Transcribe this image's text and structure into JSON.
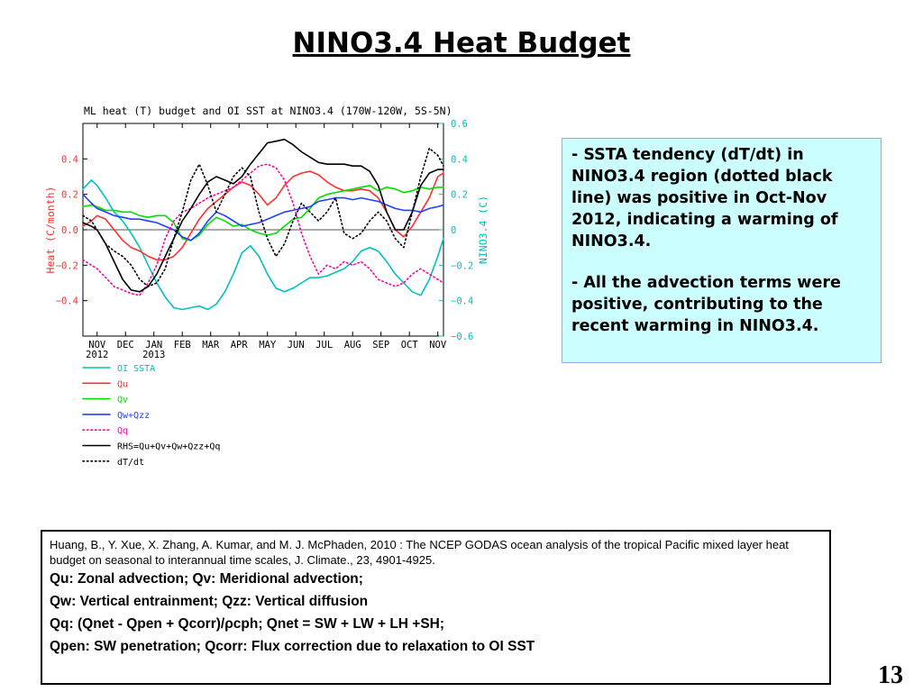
{
  "slide": {
    "title": "NINO3.4 Heat Budget",
    "page_number": "13"
  },
  "bullets": [
    {
      "dash": "- ",
      "text": "SSTA tendency (dT/dt) in NINO3.4 region (dotted black line) was positive in Oct-Nov 2012, indicating a warming of NINO3.4."
    },
    {
      "dash": "- ",
      "text": "All the advection terms were positive, contributing to the recent warming in NINO3.4."
    }
  ],
  "reference": {
    "citation": "Huang, B., Y. Xue, X. Zhang, A. Kumar, and M. J. McPhaden, 2010 : The NCEP GODAS ocean analysis of the tropical Pacific mixed layer heat budget on seasonal to interannual time scales,  J. Climate., 23, 4901-4925.",
    "definitions": [
      "Qu: Zonal advection;    Qv: Meridional advection;",
      "Qw: Vertical entrainment;  Qzz: Vertical diffusion",
      "Qq: (Qnet - Qpen + Qcorr)/ρcph;  Qnet = SW + LW + LH +SH;",
      "Qpen: SW penetration; Qcorr: Flux correction due to relaxation to OI SST"
    ]
  },
  "chart_data": {
    "type": "line",
    "title": "ML heat (T) budget and OI SST at NINO3.4 (170W-120W, 5S-5N)",
    "ylabel": "Heat (C/month)",
    "ylabel_right": "NINO3.4 (C)",
    "ylim": [
      -0.6,
      0.6
    ],
    "ylim_right": [
      -0.6,
      0.6
    ],
    "yticks_left": [
      "0.4",
      "0.2",
      "0.0",
      "−0.2",
      "−0.4"
    ],
    "yticks_left_values": [
      0.4,
      0.2,
      0.0,
      -0.2,
      -0.4
    ],
    "yticks_right": [
      "0.6",
      "0.4",
      "0.2",
      "0",
      "−0.2",
      "−0.4",
      "−0.6"
    ],
    "yticks_right_values": [
      0.6,
      0.4,
      0.2,
      0,
      -0.2,
      -0.4,
      -0.6
    ],
    "xlim": [
      -0.5,
      12.2
    ],
    "xticks": [
      "NOV",
      "DEC",
      "JAN",
      "FEB",
      "MAR",
      "APR",
      "MAY",
      "JUN",
      "JUL",
      "AUG",
      "SEP",
      "OCT",
      "NOV"
    ],
    "xticks_values": [
      0,
      1,
      2,
      3,
      4,
      5,
      6,
      7,
      8,
      9,
      10,
      11,
      12
    ],
    "year_labels": [
      {
        "x": 0,
        "text": "2012"
      },
      {
        "x": 2,
        "text": "2013"
      }
    ],
    "zero_line": true,
    "legend_position": "below",
    "series": [
      {
        "name": "OI SSTA",
        "color": "#00c0c0",
        "dash": "solid",
        "axis": "right",
        "x": [
          -0.5,
          -0.2,
          0,
          0.3,
          0.6,
          0.9,
          1.2,
          1.5,
          1.8,
          2.1,
          2.4,
          2.7,
          3,
          3.3,
          3.6,
          3.9,
          4.2,
          4.5,
          4.8,
          5.1,
          5.4,
          5.7,
          6,
          6.3,
          6.6,
          6.9,
          7.2,
          7.5,
          7.8,
          8.1,
          8.4,
          8.7,
          9,
          9.3,
          9.6,
          9.9,
          10.2,
          10.5,
          10.8,
          11.1,
          11.4,
          11.7,
          12,
          12.2
        ],
        "y": [
          0.23,
          0.28,
          0.25,
          0.18,
          0.1,
          0.05,
          -0.02,
          -0.1,
          -0.2,
          -0.3,
          -0.38,
          -0.44,
          -0.45,
          -0.44,
          -0.43,
          -0.45,
          -0.42,
          -0.35,
          -0.25,
          -0.13,
          -0.09,
          -0.15,
          -0.25,
          -0.33,
          -0.35,
          -0.33,
          -0.3,
          -0.27,
          -0.27,
          -0.26,
          -0.24,
          -0.22,
          -0.18,
          -0.12,
          -0.1,
          -0.12,
          -0.18,
          -0.25,
          -0.3,
          -0.35,
          -0.37,
          -0.28,
          -0.15,
          -0.05
        ]
      },
      {
        "name": "Qu",
        "color": "#ff3030",
        "dash": "solid",
        "axis": "left",
        "x": [
          -0.5,
          -0.2,
          0,
          0.3,
          0.6,
          0.9,
          1.2,
          1.5,
          1.8,
          2.1,
          2.4,
          2.7,
          3,
          3.3,
          3.6,
          3.9,
          4.2,
          4.5,
          4.8,
          5.1,
          5.4,
          5.7,
          6,
          6.3,
          6.6,
          6.9,
          7.2,
          7.5,
          7.8,
          8.1,
          8.4,
          8.7,
          9,
          9.3,
          9.6,
          9.9,
          10.2,
          10.5,
          10.8,
          11.1,
          11.4,
          11.7,
          12,
          12.2
        ],
        "y": [
          0.02,
          0.05,
          0.08,
          0.06,
          0.0,
          -0.06,
          -0.1,
          -0.12,
          -0.15,
          -0.17,
          -0.17,
          -0.15,
          -0.1,
          -0.02,
          0.06,
          0.12,
          0.16,
          0.2,
          0.24,
          0.27,
          0.25,
          0.2,
          0.14,
          0.18,
          0.25,
          0.3,
          0.32,
          0.33,
          0.31,
          0.27,
          0.24,
          0.22,
          0.22,
          0.23,
          0.22,
          0.18,
          0.1,
          0.0,
          -0.04,
          0.02,
          0.1,
          0.18,
          0.3,
          0.32
        ]
      },
      {
        "name": "Qv",
        "color": "#00e000",
        "dash": "solid",
        "axis": "left",
        "x": [
          -0.5,
          -0.2,
          0,
          0.3,
          0.6,
          0.9,
          1.2,
          1.5,
          1.8,
          2.1,
          2.4,
          2.7,
          3,
          3.3,
          3.6,
          3.9,
          4.2,
          4.5,
          4.8,
          5.1,
          5.4,
          5.7,
          6,
          6.3,
          6.6,
          6.9,
          7.2,
          7.5,
          7.8,
          8.1,
          8.4,
          8.7,
          9,
          9.3,
          9.6,
          9.9,
          10.2,
          10.5,
          10.8,
          11.1,
          11.4,
          11.7,
          12,
          12.2
        ],
        "y": [
          0.13,
          0.14,
          0.13,
          0.11,
          0.11,
          0.1,
          0.1,
          0.08,
          0.07,
          0.08,
          0.08,
          0.04,
          -0.05,
          -0.06,
          -0.03,
          0.03,
          0.07,
          0.05,
          0.02,
          0.03,
          0.0,
          -0.02,
          -0.03,
          -0.02,
          0.02,
          0.06,
          0.07,
          0.12,
          0.18,
          0.2,
          0.21,
          0.22,
          0.23,
          0.24,
          0.25,
          0.22,
          0.24,
          0.23,
          0.21,
          0.22,
          0.24,
          0.23,
          0.24,
          0.24
        ]
      },
      {
        "name": "Qw+Qzz",
        "color": "#2040ff",
        "dash": "solid",
        "axis": "left",
        "x": [
          -0.5,
          -0.2,
          0,
          0.3,
          0.6,
          0.9,
          1.2,
          1.5,
          1.8,
          2.1,
          2.4,
          2.7,
          3,
          3.3,
          3.6,
          3.9,
          4.2,
          4.5,
          4.8,
          5.1,
          5.4,
          5.7,
          6,
          6.3,
          6.6,
          6.9,
          7.2,
          7.5,
          7.8,
          8.1,
          8.4,
          8.7,
          9,
          9.3,
          9.6,
          9.9,
          10.2,
          10.5,
          10.8,
          11.1,
          11.4,
          11.7,
          12,
          12.2
        ],
        "y": [
          0.2,
          0.15,
          0.12,
          0.1,
          0.08,
          0.07,
          0.06,
          0.06,
          0.05,
          0.04,
          0.02,
          0.0,
          -0.04,
          -0.06,
          -0.02,
          0.05,
          0.1,
          0.08,
          0.05,
          0.02,
          0.03,
          0.04,
          0.06,
          0.08,
          0.1,
          0.11,
          0.12,
          0.13,
          0.16,
          0.17,
          0.18,
          0.18,
          0.17,
          0.18,
          0.17,
          0.16,
          0.14,
          0.12,
          0.11,
          0.11,
          0.1,
          0.12,
          0.13,
          0.14
        ]
      },
      {
        "name": "Qq",
        "color": "#ff00b0",
        "dash": "dotted",
        "axis": "left",
        "x": [
          -0.5,
          -0.2,
          0,
          0.3,
          0.6,
          0.9,
          1.2,
          1.5,
          1.8,
          2.1,
          2.4,
          2.7,
          3,
          3.3,
          3.6,
          3.9,
          4.2,
          4.5,
          4.8,
          5.1,
          5.4,
          5.7,
          6,
          6.3,
          6.6,
          6.9,
          7.2,
          7.5,
          7.8,
          8.1,
          8.4,
          8.7,
          9,
          9.3,
          9.6,
          9.9,
          10.2,
          10.5,
          10.8,
          11.1,
          11.4,
          11.7,
          12,
          12.2
        ],
        "y": [
          -0.17,
          -0.2,
          -0.22,
          -0.27,
          -0.32,
          -0.34,
          -0.36,
          -0.37,
          -0.3,
          -0.2,
          -0.05,
          0.05,
          0.1,
          0.12,
          0.15,
          0.18,
          0.2,
          0.22,
          0.24,
          0.28,
          0.32,
          0.36,
          0.37,
          0.35,
          0.28,
          0.15,
          -0.02,
          -0.15,
          -0.25,
          -0.2,
          -0.22,
          -0.18,
          -0.2,
          -0.18,
          -0.22,
          -0.28,
          -0.3,
          -0.32,
          -0.3,
          -0.25,
          -0.22,
          -0.25,
          -0.28,
          -0.3
        ]
      },
      {
        "name": "RHS=Qu+Qv+Qw+Qzz+Qq",
        "color": "#000000",
        "dash": "solid",
        "axis": "left",
        "x": [
          -0.5,
          -0.2,
          0,
          0.3,
          0.6,
          0.9,
          1.2,
          1.5,
          1.8,
          2.1,
          2.4,
          2.7,
          3,
          3.3,
          3.6,
          3.9,
          4.2,
          4.5,
          4.8,
          5.1,
          5.4,
          5.7,
          6,
          6.3,
          6.6,
          6.9,
          7.2,
          7.5,
          7.8,
          8.1,
          8.4,
          8.7,
          9,
          9.3,
          9.6,
          9.9,
          10.2,
          10.5,
          10.8,
          11.1,
          11.4,
          11.7,
          12,
          12.2
        ],
        "y": [
          0.04,
          0.02,
          0.0,
          -0.08,
          -0.18,
          -0.28,
          -0.34,
          -0.35,
          -0.32,
          -0.25,
          -0.15,
          -0.05,
          0.05,
          0.12,
          0.2,
          0.27,
          0.3,
          0.28,
          0.26,
          0.3,
          0.37,
          0.43,
          0.49,
          0.5,
          0.51,
          0.48,
          0.44,
          0.41,
          0.38,
          0.37,
          0.37,
          0.37,
          0.36,
          0.36,
          0.33,
          0.25,
          0.1,
          0.0,
          0.0,
          0.1,
          0.25,
          0.32,
          0.34,
          0.34
        ]
      },
      {
        "name": "dT/dt",
        "color": "#000000",
        "dash": "dotted",
        "axis": "left",
        "x": [
          -0.5,
          -0.2,
          0,
          0.3,
          0.6,
          0.9,
          1.2,
          1.5,
          1.8,
          2.1,
          2.4,
          2.7,
          3,
          3.3,
          3.6,
          3.9,
          4.2,
          4.5,
          4.8,
          5.1,
          5.4,
          5.7,
          6,
          6.3,
          6.6,
          6.9,
          7.2,
          7.5,
          7.8,
          8.1,
          8.4,
          8.7,
          9,
          9.3,
          9.6,
          9.9,
          10.2,
          10.5,
          10.8,
          11.1,
          11.4,
          11.7,
          12,
          12.2
        ],
        "y": [
          0.08,
          0.05,
          0.0,
          -0.08,
          -0.12,
          -0.15,
          -0.2,
          -0.28,
          -0.32,
          -0.3,
          -0.22,
          -0.05,
          0.1,
          0.28,
          0.37,
          0.25,
          0.1,
          0.2,
          0.3,
          0.35,
          0.3,
          0.1,
          -0.05,
          -0.15,
          -0.08,
          0.05,
          0.15,
          0.1,
          0.05,
          0.1,
          0.18,
          -0.02,
          -0.05,
          -0.02,
          0.05,
          0.1,
          0.05,
          -0.05,
          -0.1,
          0.1,
          0.3,
          0.46,
          0.42,
          0.36
        ]
      }
    ]
  }
}
